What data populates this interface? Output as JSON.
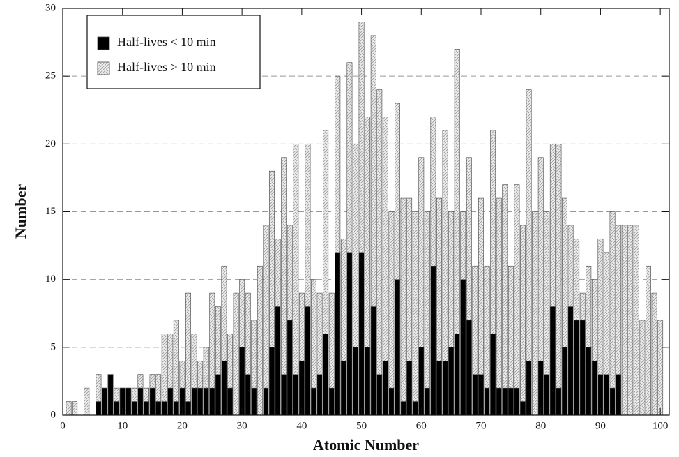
{
  "chart_data": {
    "type": "bar",
    "x_label": "Atomic Number",
    "y_label": "Number",
    "x": [
      1,
      2,
      3,
      4,
      5,
      6,
      7,
      8,
      9,
      10,
      11,
      12,
      13,
      14,
      15,
      16,
      17,
      18,
      19,
      20,
      21,
      22,
      23,
      24,
      25,
      26,
      27,
      28,
      29,
      30,
      31,
      32,
      33,
      34,
      35,
      36,
      37,
      38,
      39,
      40,
      41,
      42,
      43,
      44,
      45,
      46,
      47,
      48,
      49,
      50,
      51,
      52,
      53,
      54,
      55,
      56,
      57,
      58,
      59,
      60,
      61,
      62,
      63,
      64,
      65,
      66,
      67,
      68,
      69,
      70,
      71,
      72,
      73,
      74,
      75,
      76,
      77,
      78,
      79,
      80,
      81,
      82,
      83,
      84,
      85,
      86,
      87,
      88,
      89,
      90,
      91,
      92,
      93,
      94,
      95,
      96,
      97,
      98,
      99,
      100
    ],
    "series": [
      {
        "name": "Half-lives > 10 min",
        "color": "#d9d9d9",
        "values": [
          1,
          1,
          0,
          2,
          0,
          3,
          2,
          3,
          2,
          2,
          2,
          2,
          3,
          2,
          3,
          3,
          6,
          6,
          7,
          4,
          9,
          6,
          4,
          5,
          9,
          8,
          11,
          6,
          9,
          10,
          9,
          7,
          11,
          14,
          18,
          13,
          19,
          14,
          20,
          9,
          20,
          10,
          9,
          21,
          9,
          25,
          13,
          26,
          20,
          29,
          22,
          28,
          24,
          22,
          15,
          23,
          16,
          16,
          15,
          19,
          15,
          22,
          16,
          21,
          15,
          27,
          15,
          19,
          11,
          16,
          11,
          21,
          16,
          17,
          11,
          17,
          14,
          24,
          15,
          19,
          15,
          20,
          20,
          16,
          14,
          13,
          9,
          11,
          10,
          13,
          12,
          15,
          14,
          14,
          14,
          14,
          7,
          11,
          9,
          7
        ]
      },
      {
        "name": "Half-lives < 10 min",
        "color": "#000000",
        "values": [
          0,
          0,
          0,
          0,
          0,
          1,
          2,
          3,
          1,
          2,
          2,
          1,
          2,
          1,
          2,
          1,
          1,
          2,
          1,
          2,
          1,
          2,
          2,
          2,
          2,
          3,
          4,
          2,
          0,
          5,
          3,
          2,
          0,
          2,
          5,
          8,
          3,
          7,
          3,
          4,
          8,
          2,
          3,
          6,
          2,
          12,
          4,
          12,
          5,
          12,
          5,
          8,
          3,
          4,
          2,
          10,
          1,
          4,
          1,
          5,
          2,
          11,
          4,
          4,
          5,
          6,
          10,
          7,
          3,
          3,
          2,
          6,
          2,
          2,
          2,
          2,
          1,
          4,
          0,
          4,
          3,
          8,
          2,
          5,
          8,
          7,
          7,
          5,
          4,
          3,
          3,
          2,
          3,
          0,
          0,
          0,
          0,
          0,
          0,
          0
        ]
      }
    ],
    "xlim": [
      0,
      101.5
    ],
    "ylim": [
      0,
      30
    ],
    "xticks": [
      0,
      10,
      20,
      30,
      40,
      50,
      60,
      70,
      80,
      90,
      100
    ],
    "yticks": [
      0,
      5,
      10,
      15,
      20,
      25,
      30
    ],
    "grid": true
  }
}
